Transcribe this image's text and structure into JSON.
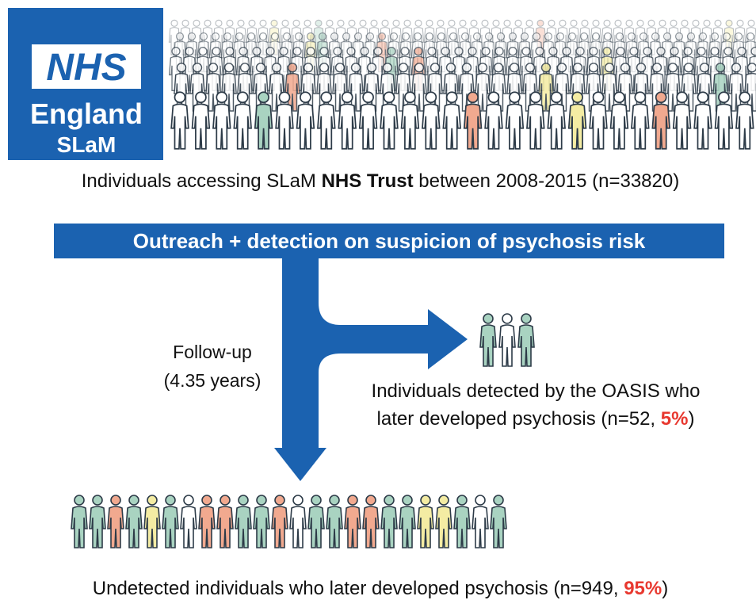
{
  "logo": {
    "mark": "NHS",
    "region": "England",
    "trust": "SLaM"
  },
  "population": {
    "caption": {
      "before": "Individuals accessing SLaM ",
      "bold": "NHS Trust",
      "after": " between 2008-2015 (n=33820)"
    }
  },
  "banner": "Outreach + detection on suspicion of psychosis risk",
  "follow_up": {
    "line1": "Follow-up",
    "line2": "(4.35 years)"
  },
  "detected": {
    "line1": "Individuals detected by the OASIS who",
    "line2_before": "later developed psychosis (n=52, ",
    "percent": "5%",
    "line2_after": ")"
  },
  "undetected": {
    "before": "Undetected individuals who later developed psychosis (n=949, ",
    "percent": "95%",
    "after": ")"
  }
}
